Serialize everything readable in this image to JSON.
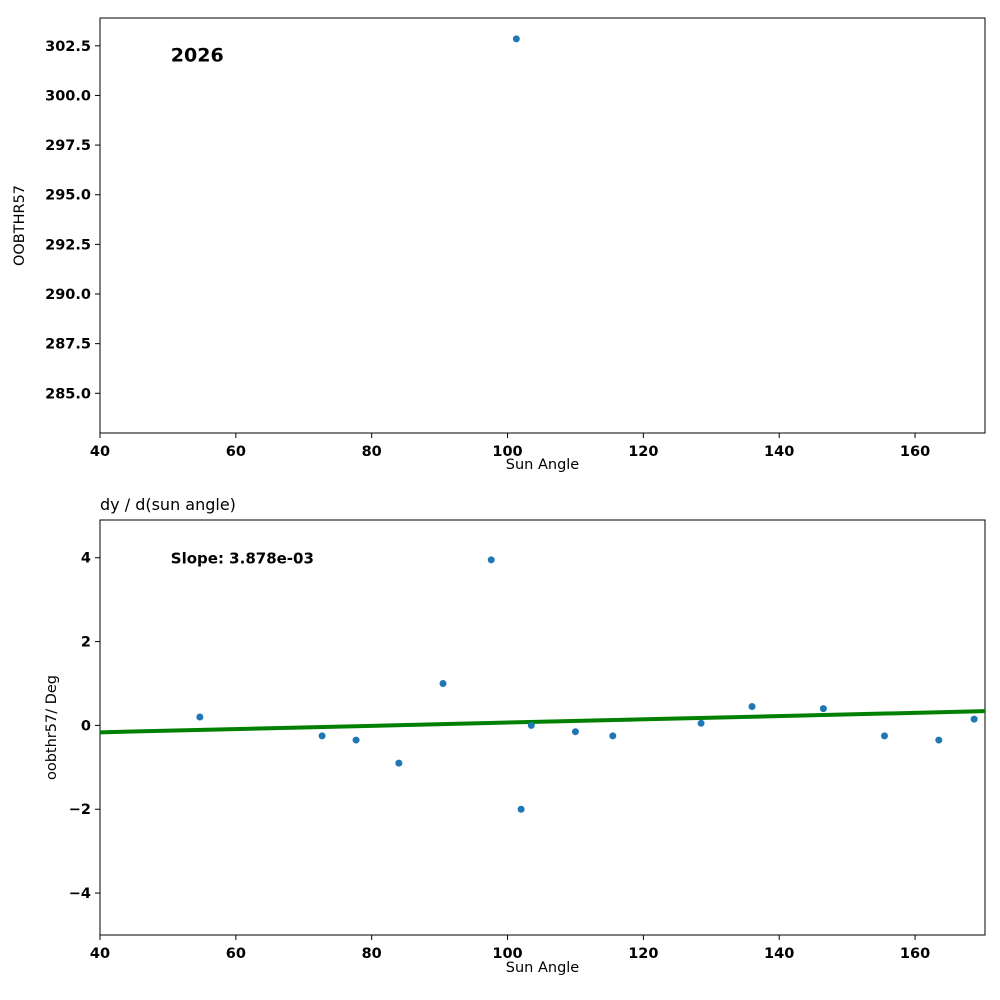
{
  "figure": {
    "background": "#ffffff",
    "marker_color": "#1f77b4",
    "trend_color": "#008000"
  },
  "chart_data": [
    {
      "type": "scatter",
      "title": "",
      "annotation": "2026",
      "xlabel": "Sun Angle",
      "ylabel": "OOBTHR57",
      "xlim": [
        40,
        170.3
      ],
      "ylim": [
        283.0,
        303.9
      ],
      "xticks": [
        40,
        60,
        80,
        100,
        120,
        140,
        160
      ],
      "xtick_labels": [
        "40",
        "60",
        "80",
        "100",
        "120",
        "140",
        "160"
      ],
      "yticks": [
        285.0,
        287.5,
        290.0,
        292.5,
        295.0,
        297.5,
        300.0,
        302.5
      ],
      "ytick_labels": [
        "285.0",
        "287.5",
        "290.0",
        "292.5",
        "295.0",
        "297.5",
        "300.0",
        "302.5"
      ],
      "grid": false,
      "legend": null,
      "marker_color": "#1f77b4",
      "points": [
        [
          101.3,
          302.85
        ]
      ]
    },
    {
      "type": "scatter",
      "title": "dy / d(sun angle)",
      "annotation": "Slope: 3.878e-03",
      "xlabel": "Sun Angle",
      "ylabel": "oobthr57/ Deg",
      "xlim": [
        40,
        170.3
      ],
      "ylim": [
        -5.0,
        4.9
      ],
      "xticks": [
        40,
        60,
        80,
        100,
        120,
        140,
        160
      ],
      "xtick_labels": [
        "40",
        "60",
        "80",
        "100",
        "120",
        "140",
        "160"
      ],
      "yticks": [
        -4,
        -2,
        0,
        2,
        4
      ],
      "ytick_labels": [
        "−4",
        "−2",
        "0",
        "2",
        "4"
      ],
      "grid": false,
      "legend": null,
      "marker_color": "#1f77b4",
      "points": [
        [
          54.7,
          0.2
        ],
        [
          72.7,
          -0.25
        ],
        [
          77.7,
          -0.35
        ],
        [
          84.0,
          -0.9
        ],
        [
          90.5,
          1.0
        ],
        [
          97.6,
          3.95
        ],
        [
          102.0,
          -2.0
        ],
        [
          103.5,
          0.0
        ],
        [
          110.0,
          -0.15
        ],
        [
          115.5,
          -0.25
        ],
        [
          128.5,
          0.05
        ],
        [
          136.0,
          0.45
        ],
        [
          146.5,
          0.4
        ],
        [
          155.5,
          -0.25
        ],
        [
          163.5,
          -0.35
        ],
        [
          168.7,
          0.15
        ]
      ],
      "trend_line": {
        "color": "#008000",
        "slope": "3.878e-03",
        "x": [
          40,
          170.3
        ],
        "y": [
          -0.165,
          0.34
        ]
      }
    }
  ]
}
